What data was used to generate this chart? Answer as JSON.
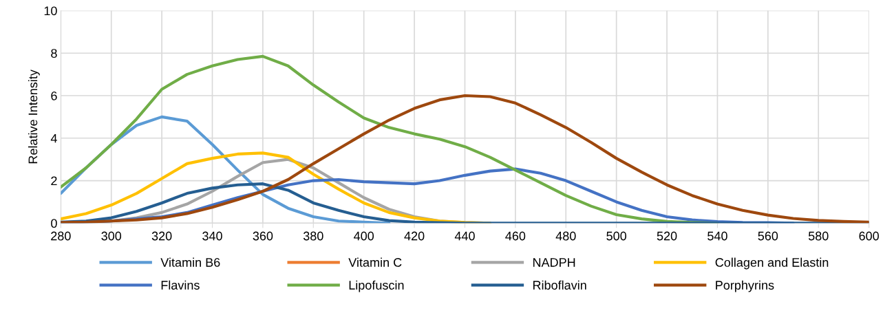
{
  "chart_data": {
    "type": "line",
    "ylabel": "Relative Intensity",
    "x": [
      280,
      290,
      300,
      310,
      320,
      330,
      340,
      350,
      360,
      370,
      380,
      390,
      400,
      410,
      420,
      430,
      440,
      450,
      460,
      470,
      480,
      490,
      500,
      510,
      520,
      530,
      540,
      550,
      560,
      570,
      580,
      590,
      600
    ],
    "xlim": [
      280,
      600
    ],
    "xticks": [
      280,
      300,
      320,
      340,
      360,
      380,
      400,
      420,
      440,
      460,
      480,
      500,
      520,
      540,
      560,
      580,
      600
    ],
    "ylim": [
      0,
      10
    ],
    "yticks": [
      0,
      2,
      4,
      6,
      8,
      10
    ],
    "grid": true,
    "legend": "bottom",
    "marker": "none",
    "line_style": "solid",
    "series": [
      {
        "name": "Vitamin B6",
        "color": "#5b9bd5",
        "values": [
          1.4,
          2.6,
          3.7,
          4.6,
          5.0,
          4.8,
          3.7,
          2.5,
          1.35,
          0.7,
          0.3,
          0.1,
          0.05,
          0,
          null,
          null,
          null,
          null,
          null,
          null,
          null,
          null,
          null,
          null,
          null,
          null,
          null,
          null,
          null,
          null,
          null,
          null,
          null
        ]
      },
      {
        "name": "Vitamin C",
        "color": "#ed7d31",
        "values": [
          null,
          null,
          null,
          null,
          null,
          null,
          null,
          null,
          null,
          null,
          null,
          null,
          null,
          null,
          null,
          null,
          null,
          null,
          null,
          null,
          null,
          null,
          null,
          null,
          null,
          null,
          null,
          null,
          null,
          null,
          null,
          null,
          null
        ]
      },
      {
        "name": "NADPH",
        "color": "#a5a5a5",
        "values": [
          0.02,
          0.05,
          0.1,
          0.25,
          0.5,
          0.9,
          1.5,
          2.2,
          2.85,
          3.0,
          2.6,
          1.9,
          1.2,
          0.65,
          0.3,
          0.1,
          0.03,
          0,
          null,
          null,
          null,
          null,
          null,
          null,
          null,
          null,
          null,
          null,
          null,
          null,
          null,
          null,
          null
        ]
      },
      {
        "name": "Collagen and Elastin",
        "color": "#ffc000",
        "values": [
          0.2,
          0.45,
          0.85,
          1.4,
          2.1,
          2.8,
          3.05,
          3.25,
          3.3,
          3.1,
          2.3,
          1.6,
          0.95,
          0.5,
          0.25,
          0.1,
          0.03,
          0,
          null,
          null,
          null,
          null,
          null,
          null,
          null,
          null,
          null,
          null,
          null,
          null,
          null,
          null,
          null
        ]
      },
      {
        "name": "Flavins",
        "color": "#4472c4",
        "values": [
          0.02,
          0.05,
          0.1,
          0.2,
          0.3,
          0.5,
          0.85,
          1.2,
          1.5,
          1.8,
          2.0,
          2.05,
          1.95,
          1.9,
          1.85,
          2.0,
          2.25,
          2.45,
          2.55,
          2.35,
          2.0,
          1.5,
          1.0,
          0.6,
          0.3,
          0.15,
          0.07,
          0.03,
          0.02,
          0,
          null,
          null,
          null
        ]
      },
      {
        "name": "Lipofuscin",
        "color": "#70ad47",
        "values": [
          1.7,
          2.6,
          3.7,
          4.9,
          6.3,
          7.0,
          7.4,
          7.7,
          7.85,
          7.4,
          6.5,
          5.7,
          4.95,
          4.5,
          4.2,
          3.95,
          3.6,
          3.1,
          2.5,
          1.9,
          1.3,
          0.8,
          0.4,
          0.2,
          0.08,
          0.03,
          0,
          null,
          null,
          null,
          null,
          null,
          null
        ]
      },
      {
        "name": "Riboflavin",
        "color": "#255e91",
        "values": [
          0.05,
          0.1,
          0.25,
          0.55,
          0.95,
          1.4,
          1.65,
          1.8,
          1.85,
          1.55,
          0.95,
          0.6,
          0.3,
          0.12,
          0.05,
          0.02,
          0,
          0,
          0,
          0,
          0,
          0,
          0,
          0,
          0,
          0,
          0,
          0,
          0,
          0,
          0,
          0,
          0
        ]
      },
      {
        "name": "Porphyrins",
        "color": "#9e480e",
        "values": [
          0.03,
          0.05,
          0.1,
          0.15,
          0.25,
          0.45,
          0.75,
          1.1,
          1.5,
          2.05,
          2.8,
          3.5,
          4.2,
          4.85,
          5.4,
          5.8,
          6.0,
          5.95,
          5.65,
          5.1,
          4.5,
          3.8,
          3.05,
          2.4,
          1.8,
          1.3,
          0.9,
          0.6,
          0.38,
          0.22,
          0.13,
          0.08,
          0.05
        ]
      }
    ]
  }
}
